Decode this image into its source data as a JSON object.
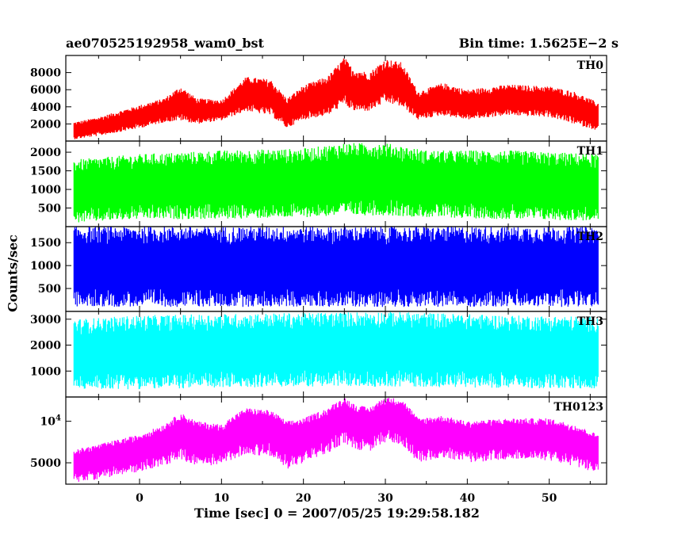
{
  "header": {
    "title": "ae070525192958_wam0_bst",
    "bin_time": "Bin time: 1.5625E−2 s"
  },
  "chart_data": {
    "type": "line",
    "title": "ae070525192958_wam0_bst",
    "xlabel": "Time [sec] 0 = 2007/05/25 19:29:58.182",
    "ylabel": "Counts/sec",
    "xlim": [
      -9,
      57
    ],
    "x_ticks": [
      0,
      10,
      20,
      30,
      40,
      50
    ],
    "x_range_data": [
      -8,
      56
    ],
    "grid": false,
    "panels": [
      {
        "name": "TH0",
        "color": "#ff0000",
        "ylim": [
          0,
          10000
        ],
        "y_ticks": [
          2000,
          4000,
          6000,
          8000
        ],
        "y_tick_labels": [
          "2000",
          "4000",
          "6000",
          "8000"
        ],
        "envelope": {
          "x": [
            -8,
            -5,
            0,
            3,
            5,
            7,
            10,
            13,
            16,
            18,
            20,
            23,
            25,
            26,
            28,
            30,
            32,
            34,
            37,
            40,
            45,
            50,
            53,
            56
          ],
          "upper": [
            2200,
            2800,
            4200,
            5000,
            6400,
            5000,
            4800,
            7500,
            7200,
            5000,
            6500,
            7600,
            9800,
            8500,
            8000,
            9600,
            9200,
            5800,
            6800,
            6000,
            6600,
            6400,
            5800,
            4500
          ],
          "lower": [
            200,
            600,
            1500,
            2200,
            2400,
            2000,
            2400,
            3500,
            3000,
            1500,
            2500,
            3000,
            4300,
            3500,
            3500,
            4500,
            4000,
            2500,
            3000,
            2500,
            3000,
            2800,
            2000,
            1200
          ]
        }
      },
      {
        "name": "TH1",
        "color": "#00ff00",
        "ylim": [
          0,
          2300
        ],
        "y_ticks": [
          500,
          1000,
          1500,
          2000
        ],
        "y_tick_labels": [
          "500",
          "1000",
          "1500",
          "2000"
        ],
        "envelope": {
          "x": [
            -8,
            0,
            10,
            20,
            25,
            30,
            35,
            45,
            56
          ],
          "upper": [
            1800,
            1950,
            2050,
            2100,
            2250,
            2250,
            2050,
            2050,
            1950
          ],
          "lower": [
            100,
            200,
            200,
            250,
            300,
            300,
            250,
            200,
            150
          ]
        }
      },
      {
        "name": "TH2",
        "color": "#0000ff",
        "ylim": [
          0,
          1850
        ],
        "y_ticks": [
          500,
          1000,
          1500
        ],
        "y_tick_labels": [
          "500",
          "1000",
          "1500"
        ],
        "envelope": {
          "x": [
            -8,
            56
          ],
          "upper": [
            1850,
            1850
          ],
          "lower": [
            100,
            100
          ]
        }
      },
      {
        "name": "TH3",
        "color": "#00ffff",
        "ylim": [
          0,
          3300
        ],
        "y_ticks": [
          1000,
          2000,
          3000
        ],
        "y_tick_labels": [
          "1000",
          "2000",
          "3000"
        ],
        "envelope": {
          "x": [
            -8,
            0,
            20,
            30,
            45,
            56
          ],
          "upper": [
            3000,
            3150,
            3250,
            3300,
            3150,
            3100
          ],
          "lower": [
            300,
            300,
            400,
            400,
            350,
            300
          ]
        }
      },
      {
        "name": "TH0123",
        "color": "#ff00ff",
        "ylim": [
          3500,
          15000
        ],
        "log": true,
        "y_ticks": [
          5000,
          10000
        ],
        "y_tick_labels": [
          "5000",
          "10^4"
        ],
        "envelope": {
          "x": [
            -8,
            -5,
            0,
            3,
            5,
            7,
            10,
            13,
            16,
            18,
            20,
            23,
            25,
            26,
            28,
            30,
            32,
            34,
            37,
            40,
            45,
            50,
            53,
            56
          ],
          "upper": [
            6200,
            6800,
            8000,
            9500,
            11500,
            10000,
            9500,
            12500,
            12000,
            10000,
            10500,
            12500,
            15000,
            13500,
            12500,
            15000,
            14500,
            10500,
            11000,
            10000,
            10500,
            10500,
            9500,
            8000
          ],
          "lower": [
            3600,
            3800,
            4300,
            4800,
            5200,
            4800,
            4800,
            5800,
            5500,
            4500,
            5000,
            5800,
            7000,
            6300,
            6000,
            7000,
            6800,
            5000,
            5500,
            5000,
            5300,
            5200,
            4700,
            4200
          ]
        }
      }
    ]
  }
}
